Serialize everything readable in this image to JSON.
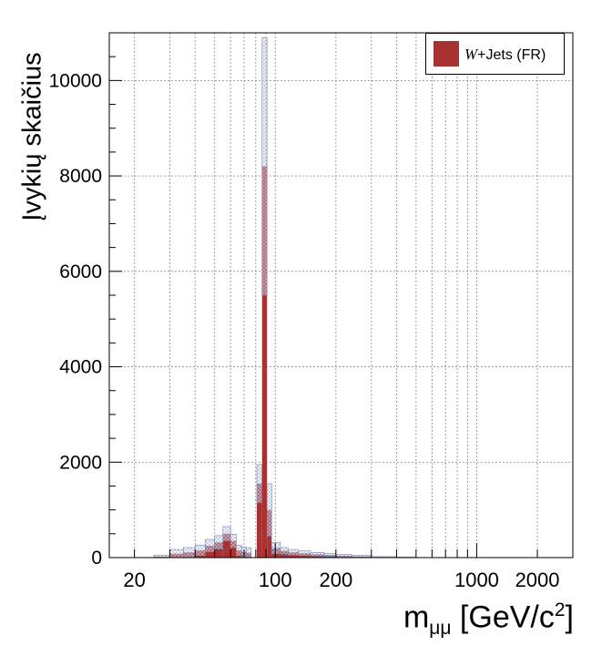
{
  "chart_data": {
    "type": "bar",
    "title": "",
    "xlabel": "m_{μμ} [GeV/c^{2}]",
    "ylabel": "Įvykių skaičius",
    "x_scale": "log",
    "xlim": [
      15,
      3000
    ],
    "ylim": [
      0,
      11000
    ],
    "x_ticks": [
      20,
      100,
      200,
      1000,
      2000
    ],
    "x_tick_labels": [
      "20",
      "100",
      "200",
      "1000",
      "2000"
    ],
    "y_ticks": [
      0,
      2000,
      4000,
      6000,
      8000,
      10000
    ],
    "y_tick_labels": [
      "0",
      "2000",
      "4000",
      "6000",
      "8000",
      "10000"
    ],
    "grid": true,
    "legend_position": "top-right",
    "series": [
      {
        "name": "W+Jets (FR)",
        "color": "#a83232",
        "bins": [
          {
            "lo": 25,
            "hi": 30,
            "value": 20,
            "err": 30
          },
          {
            "lo": 30,
            "hi": 35,
            "value": 80,
            "err": 90
          },
          {
            "lo": 35,
            "hi": 40,
            "value": 110,
            "err": 100
          },
          {
            "lo": 40,
            "hi": 45,
            "value": 150,
            "err": 110
          },
          {
            "lo": 45,
            "hi": 50,
            "value": 250,
            "err": 130
          },
          {
            "lo": 50,
            "hi": 55,
            "value": 320,
            "err": 140
          },
          {
            "lo": 55,
            "hi": 60,
            "value": 500,
            "err": 150
          },
          {
            "lo": 60,
            "hi": 64,
            "value": 350,
            "err": 140
          },
          {
            "lo": 64,
            "hi": 68,
            "value": 150,
            "err": 110
          },
          {
            "lo": 68,
            "hi": 72,
            "value": 120,
            "err": 100
          },
          {
            "lo": 72,
            "hi": 76,
            "value": 100,
            "err": 100
          },
          {
            "lo": 81,
            "hi": 86,
            "value": 1550,
            "err": 400
          },
          {
            "lo": 86,
            "hi": 91,
            "value": 8200,
            "err": 2700
          },
          {
            "lo": 91,
            "hi": 96,
            "value": 1000,
            "err": 550
          },
          {
            "lo": 96,
            "hi": 106,
            "value": 200,
            "err": 120
          },
          {
            "lo": 106,
            "hi": 116,
            "value": 140,
            "err": 70
          },
          {
            "lo": 116,
            "hi": 130,
            "value": 110,
            "err": 60
          },
          {
            "lo": 130,
            "hi": 150,
            "value": 90,
            "err": 50
          },
          {
            "lo": 150,
            "hi": 175,
            "value": 70,
            "err": 40
          },
          {
            "lo": 175,
            "hi": 200,
            "value": 55,
            "err": 30
          },
          {
            "lo": 200,
            "hi": 240,
            "value": 40,
            "err": 25
          },
          {
            "lo": 240,
            "hi": 300,
            "value": 25,
            "err": 20
          },
          {
            "lo": 300,
            "hi": 400,
            "value": 10,
            "err": 10
          },
          {
            "lo": 400,
            "hi": 500,
            "value": 5,
            "err": 5
          }
        ]
      }
    ]
  },
  "legend": {
    "swatch_color": "#a83232",
    "label_italic": "W",
    "label_rest": "+Jets (FR)"
  },
  "axes": {
    "ylabel": "Įvykių skaičius",
    "xlabel_main": "m",
    "xlabel_sub": "μμ",
    "xlabel_unit": " [GeV/c",
    "xlabel_sup": "2",
    "xlabel_close": "]"
  }
}
